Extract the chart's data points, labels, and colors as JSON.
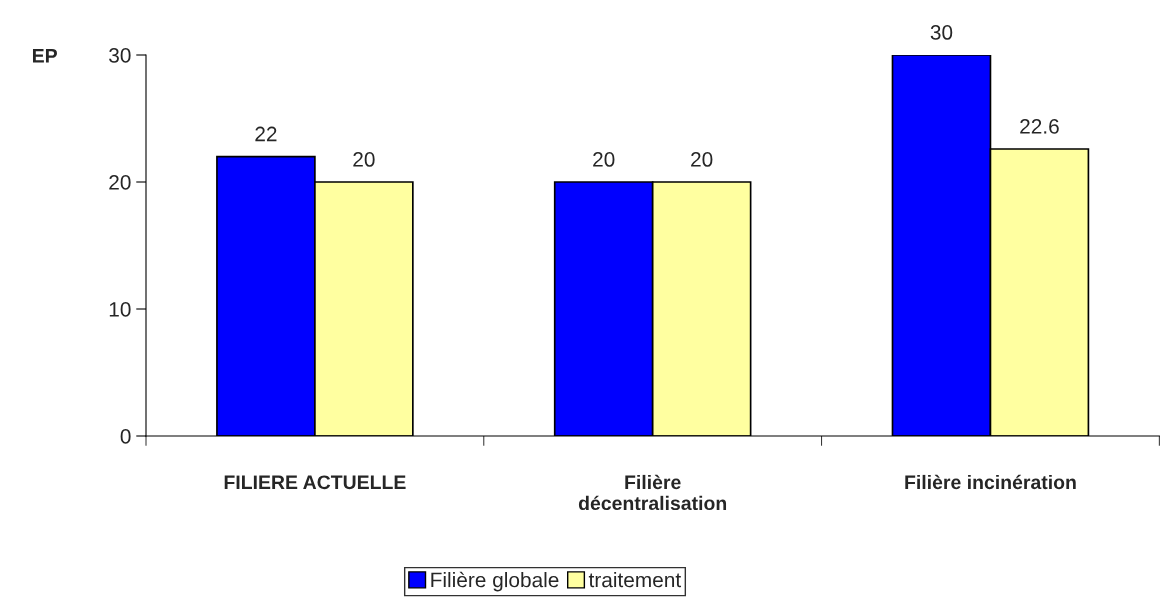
{
  "chart_data": {
    "type": "bar",
    "ylabel": "EP",
    "categories": [
      "FILIERE ACTUELLE",
      "Filière\ndécentralisation",
      "Filière incinération"
    ],
    "series": [
      {
        "name": "Filière globale",
        "color": "#0000ff",
        "values": [
          22,
          20,
          30
        ]
      },
      {
        "name": "traitement",
        "color": "#ffffa0",
        "values": [
          20,
          20,
          22.6
        ]
      }
    ],
    "ylim": [
      0,
      30
    ],
    "yticks": [
      0,
      10,
      20,
      30
    ],
    "grid": false,
    "legend": "bottom",
    "data_labels": true
  }
}
